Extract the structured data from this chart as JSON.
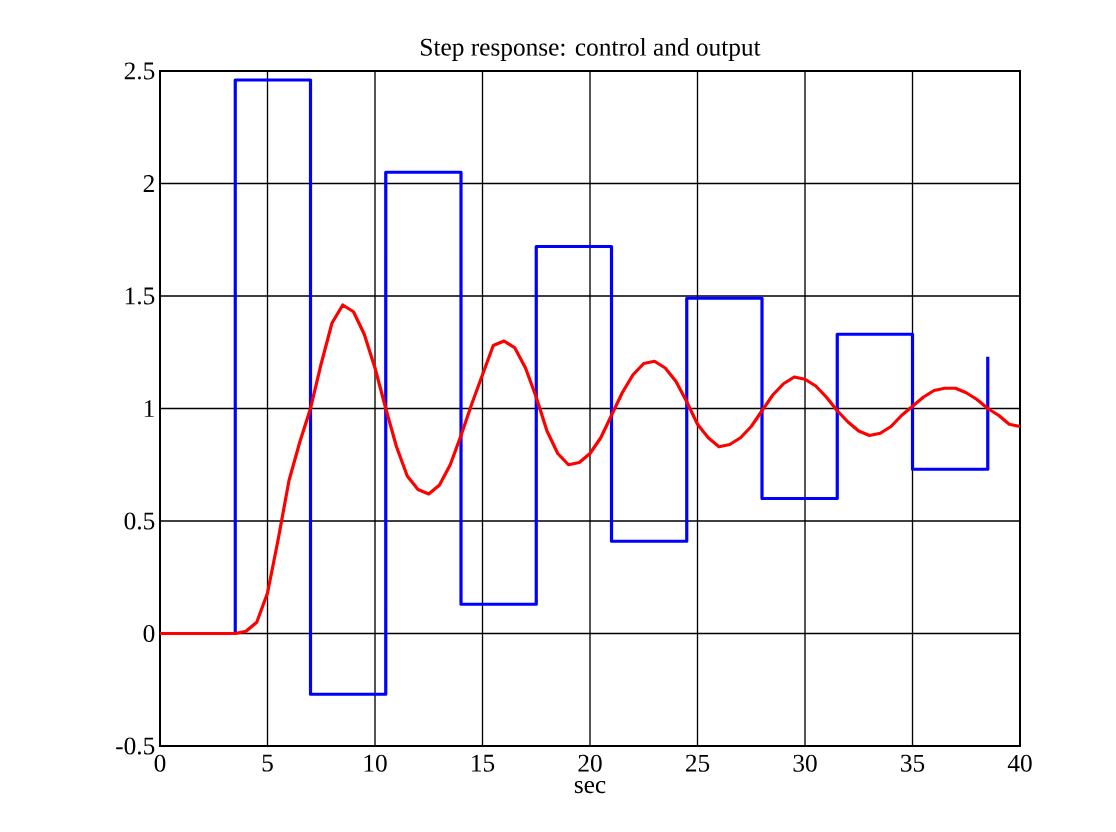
{
  "chart_data": {
    "type": "line",
    "title": "Step response: control and output",
    "xlabel": "sec",
    "xlim": [
      0,
      40
    ],
    "ylim": [
      -0.5,
      2.5
    ],
    "xticks": [
      0,
      5,
      10,
      15,
      20,
      25,
      30,
      35,
      40
    ],
    "yticks": [
      -0.5,
      0,
      0.5,
      1,
      1.5,
      2,
      2.5
    ],
    "grid": true,
    "series": [
      {
        "type": "step",
        "color": "#0000ff",
        "x": [
          0,
          3.5,
          7,
          10.5,
          14,
          17.5,
          21,
          24.5,
          28,
          31.5,
          35,
          38.5
        ],
        "values": [
          0,
          2.46,
          -0.27,
          2.05,
          0.13,
          1.72,
          0.41,
          1.49,
          0.6,
          1.33,
          0.73,
          1.23
        ]
      },
      {
        "color": "#ff0000",
        "x": [
          0,
          3.5,
          4,
          4.5,
          5,
          5.5,
          6,
          6.5,
          7,
          7.5,
          8,
          8.5,
          9,
          9.5,
          10,
          10.5,
          11,
          11.5,
          12,
          12.5,
          13,
          13.5,
          14,
          14.5,
          15,
          15.5,
          16,
          16.5,
          17,
          17.5,
          18,
          18.5,
          19,
          19.5,
          20,
          20.5,
          21,
          21.5,
          22,
          22.5,
          23,
          23.5,
          24,
          24.5,
          25,
          25.5,
          26,
          26.5,
          27,
          27.5,
          28,
          28.5,
          29,
          29.5,
          30,
          30.5,
          31,
          31.5,
          32,
          32.5,
          33,
          33.5,
          34,
          34.5,
          35,
          35.5,
          36,
          36.5,
          37,
          37.5,
          38,
          38.5,
          39,
          39.5,
          40
        ],
        "values": [
          0,
          0,
          0.01,
          0.05,
          0.18,
          0.42,
          0.68,
          0.85,
          1.0,
          1.2,
          1.38,
          1.46,
          1.43,
          1.33,
          1.18,
          1.0,
          0.83,
          0.7,
          0.64,
          0.62,
          0.66,
          0.75,
          0.88,
          1.02,
          1.15,
          1.28,
          1.3,
          1.27,
          1.18,
          1.05,
          0.9,
          0.8,
          0.75,
          0.76,
          0.8,
          0.87,
          0.97,
          1.07,
          1.15,
          1.2,
          1.21,
          1.18,
          1.12,
          1.03,
          0.93,
          0.87,
          0.83,
          0.84,
          0.87,
          0.92,
          0.99,
          1.06,
          1.11,
          1.14,
          1.13,
          1.1,
          1.05,
          0.99,
          0.94,
          0.9,
          0.88,
          0.89,
          0.92,
          0.97,
          1.01,
          1.05,
          1.08,
          1.09,
          1.09,
          1.07,
          1.04,
          1.0,
          0.97,
          0.93,
          0.92
        ]
      }
    ]
  }
}
